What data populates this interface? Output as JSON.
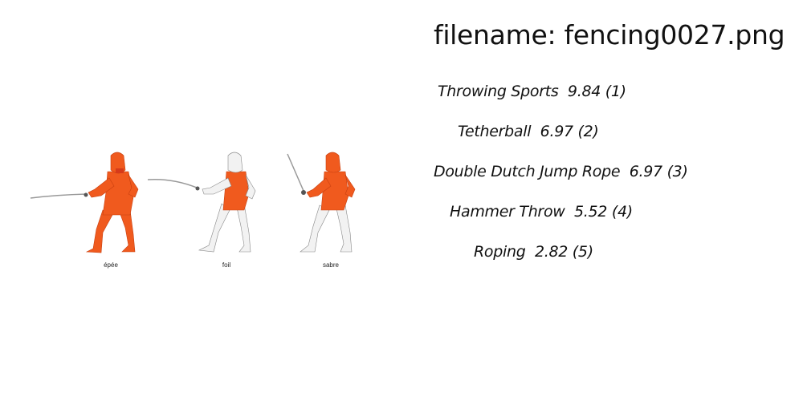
{
  "filename_line": "filename: fencing0027.png",
  "figure": {
    "captions": [
      "épée",
      "foil",
      "sabre"
    ],
    "colors": {
      "suit_orange": "#f05a1e",
      "suit_white": "#f2f2f2",
      "outline": "#888888"
    }
  },
  "predictions": [
    {
      "text": "Throwing Sports  9.84 (1)"
    },
    {
      "text": "Tetherball  6.97 (2)"
    },
    {
      "text": "Double Dutch Jump Rope  6.97 (3)"
    },
    {
      "text": "Hammer Throw  5.52 (4)"
    },
    {
      "text": "Roping  2.82 (5)"
    }
  ]
}
